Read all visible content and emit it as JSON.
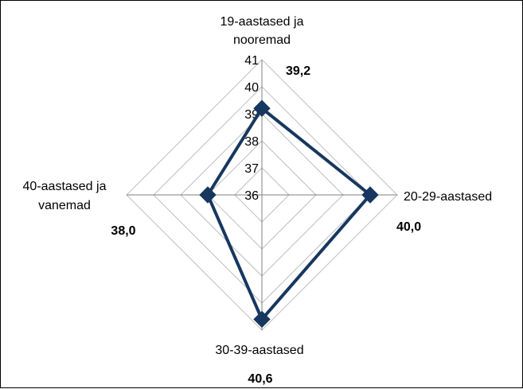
{
  "chart_data": {
    "type": "radar",
    "categories": [
      [
        "19-aastased ja",
        "nooremad"
      ],
      [
        "20-29-aastased"
      ],
      [
        "30-39-aastased"
      ],
      [
        "40-aastased ja",
        "vanemad"
      ]
    ],
    "values": [
      39.2,
      40.0,
      40.6,
      38.0
    ],
    "value_labels": [
      "39,2",
      "40,0",
      "40,6",
      "38,0"
    ],
    "rlim": [
      36,
      41
    ],
    "ticks": [
      36,
      37,
      38,
      39,
      40,
      41
    ],
    "grid": true,
    "legend": "none",
    "colors": {
      "series": "#17375E",
      "grid": "#BFBFBF",
      "axis": "#808080"
    }
  }
}
